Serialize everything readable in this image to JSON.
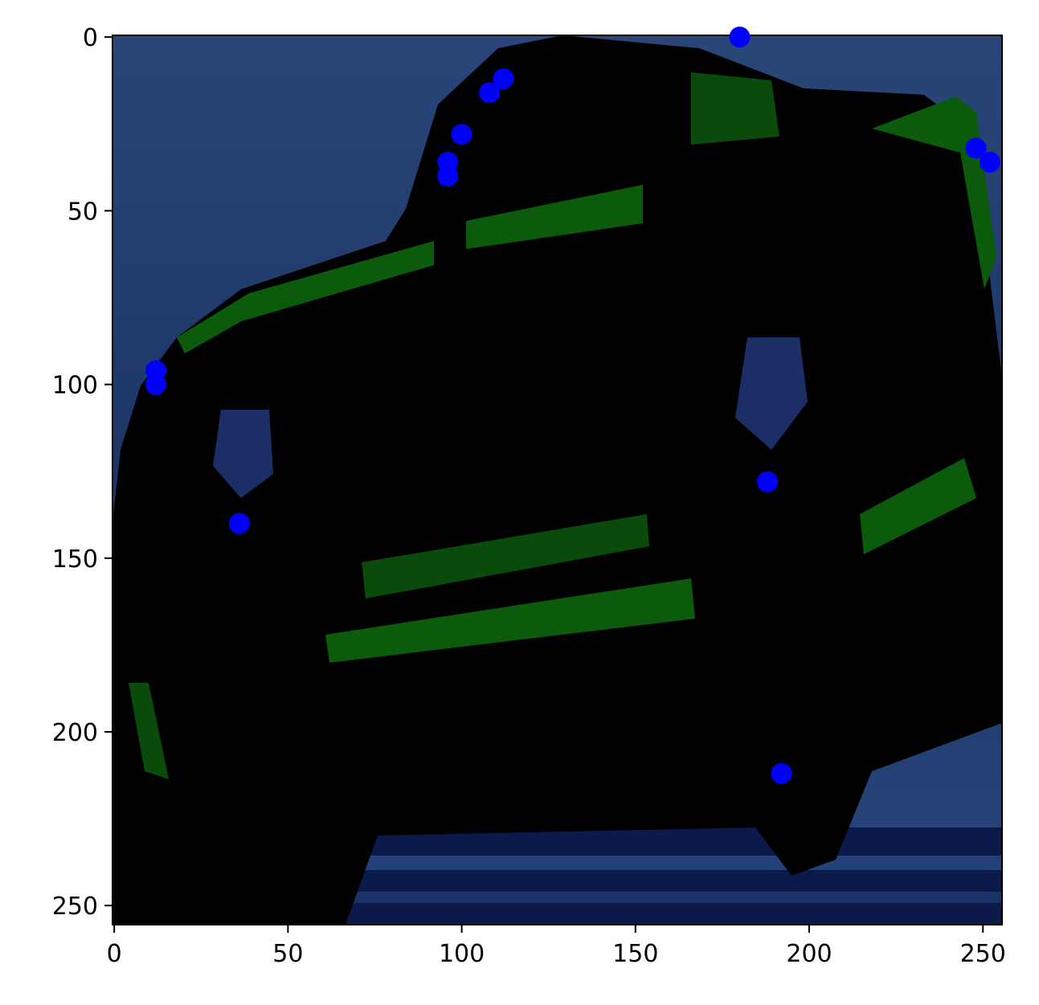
{
  "chart_data": {
    "type": "scatter",
    "title": "",
    "xlabel": "",
    "ylabel": "",
    "background_image": "dark-blue-green-image-of-car-front",
    "xlim": [
      0,
      255
    ],
    "ylim": [
      255,
      0
    ],
    "y_axis_inverted": true,
    "grid": false,
    "x_ticks": [
      "0",
      "50",
      "100",
      "150",
      "200",
      "250"
    ],
    "y_ticks": [
      "0",
      "50",
      "100",
      "150",
      "200",
      "250"
    ],
    "marker_color": "#0000ff",
    "points": [
      {
        "x": 180,
        "y": 0
      },
      {
        "x": 112,
        "y": 12
      },
      {
        "x": 108,
        "y": 16
      },
      {
        "x": 100,
        "y": 28
      },
      {
        "x": 96,
        "y": 36
      },
      {
        "x": 96,
        "y": 40
      },
      {
        "x": 248,
        "y": 32
      },
      {
        "x": 252,
        "y": 36
      },
      {
        "x": 12,
        "y": 96
      },
      {
        "x": 12,
        "y": 100
      },
      {
        "x": 36,
        "y": 140
      },
      {
        "x": 188,
        "y": 128
      },
      {
        "x": 192,
        "y": 212
      }
    ]
  }
}
